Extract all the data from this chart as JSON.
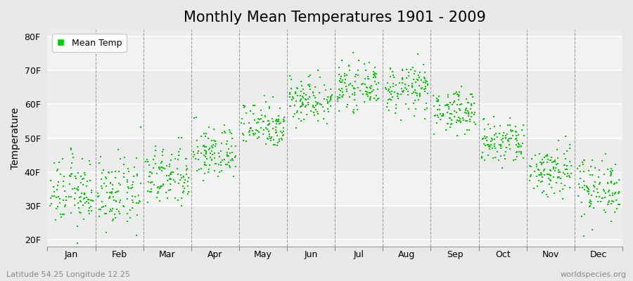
{
  "title": "Monthly Mean Temperatures 1901 - 2009",
  "ylabel": "Temperature",
  "xlabel_labels": [
    "Jan",
    "Feb",
    "Mar",
    "Apr",
    "May",
    "Jun",
    "Jul",
    "Aug",
    "Sep",
    "Oct",
    "Nov",
    "Dec"
  ],
  "ytick_labels": [
    "20F",
    "30F",
    "40F",
    "50F",
    "60F",
    "70F",
    "80F"
  ],
  "ytick_values": [
    20,
    30,
    40,
    50,
    60,
    70,
    80
  ],
  "ylim": [
    18,
    82
  ],
  "xlim": [
    0,
    12
  ],
  "legend_label": "Mean Temp",
  "dot_color": "#00CC00",
  "bg_color": "#E8E8E8",
  "plot_bg_color": "#F2F2F2",
  "footer_left": "Latitude 54.25 Longitude 12.25",
  "footer_right": "worldspecies.org",
  "title_fontsize": 15,
  "label_fontsize": 10,
  "tick_fontsize": 9,
  "monthly_means": [
    34.0,
    33.5,
    38.5,
    45.5,
    54.0,
    61.5,
    65.0,
    64.5,
    58.0,
    48.5,
    40.5,
    35.5
  ],
  "monthly_stds": [
    5.0,
    5.0,
    4.5,
    4.0,
    3.5,
    3.5,
    3.0,
    3.5,
    3.0,
    3.5,
    4.0,
    4.5
  ],
  "n_years": 109
}
